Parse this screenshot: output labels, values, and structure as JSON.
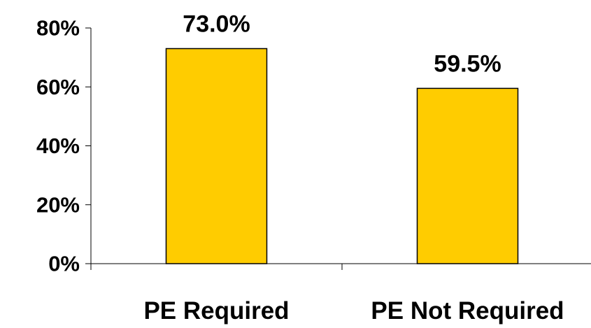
{
  "chart_data": {
    "type": "bar",
    "categories": [
      "PE Required",
      "PE Not Required"
    ],
    "values": [
      73.0,
      59.5
    ],
    "data_labels": [
      "73.0%",
      "59.5%"
    ],
    "y_ticks": [
      0,
      20,
      40,
      60,
      80
    ],
    "y_tick_labels": [
      "0%",
      "20%",
      "40%",
      "60%",
      "80%"
    ],
    "ylim": [
      0,
      80
    ],
    "grid": false,
    "legend": "none",
    "bar_color": "#FFCC00"
  }
}
